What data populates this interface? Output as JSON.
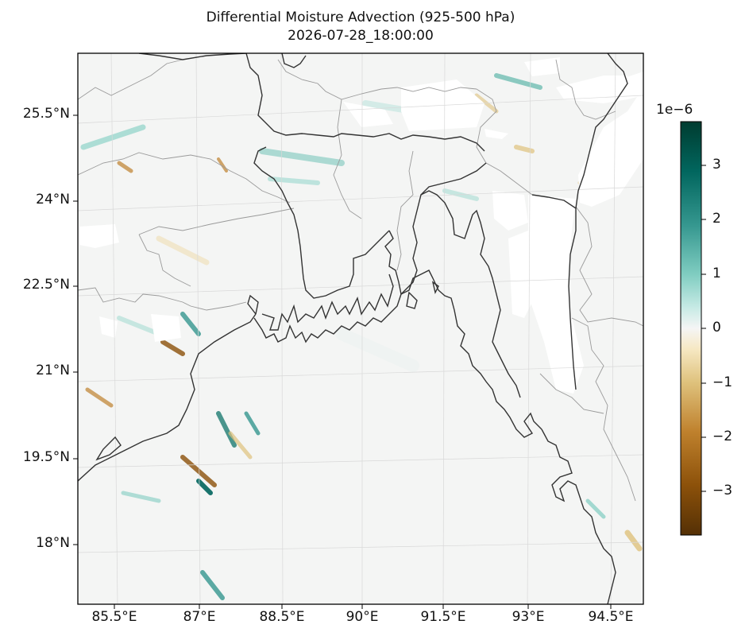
{
  "title": "Differential Moisture Advection (925-500 hPa)",
  "subtitle": "2026-07-28_18:00:00",
  "map": {
    "lat_labels": [
      "25.5°N",
      "24°N",
      "22.5°N",
      "21°N",
      "19.5°N",
      "18°N"
    ],
    "lon_labels": [
      "85.5°E",
      "87°E",
      "88.5°E",
      "90°E",
      "91.5°E",
      "93°E",
      "94.5°E"
    ],
    "colormap": "BrBG",
    "colors": {
      "brown": "#8c510a",
      "tan": "#dfc27d",
      "neutral": "#f5f5f5",
      "teal": "#80cdc1",
      "dark_teal": "#01665e"
    }
  },
  "colorbar": {
    "exponent": "1e−6",
    "ticks": [
      "3",
      "2",
      "1",
      "0",
      "−1",
      "−2",
      "−3"
    ]
  }
}
